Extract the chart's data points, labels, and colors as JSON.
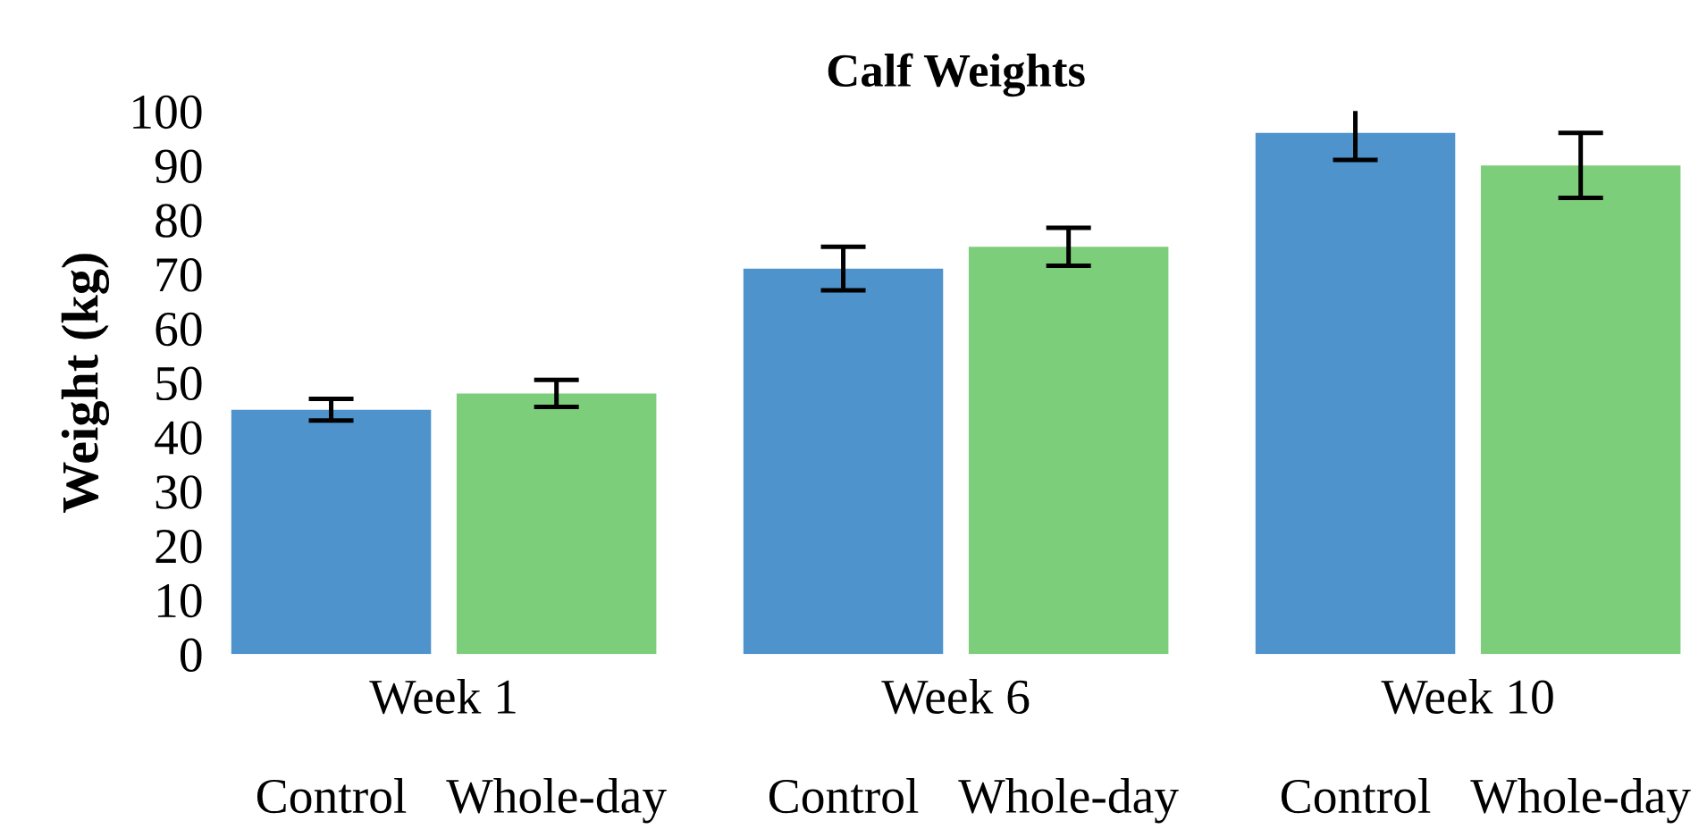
{
  "chart_data": {
    "type": "bar",
    "title": "Calf Weights",
    "ylabel": "Weight (kg)",
    "categories": [
      "Week 1",
      "Week 6",
      "Week 10"
    ],
    "series": [
      {
        "name": "Control",
        "color": "#4f93cd",
        "values": [
          45,
          71,
          96
        ],
        "errors": [
          2,
          4,
          5
        ]
      },
      {
        "name": "Whole-day",
        "color": "#7dce7a",
        "values": [
          48,
          75,
          90
        ],
        "errors": [
          2.5,
          3.5,
          6
        ]
      }
    ],
    "ylim": [
      0,
      100
    ],
    "yticks": [
      0,
      10,
      20,
      30,
      40,
      50,
      60,
      70,
      80,
      90,
      100
    ],
    "grid": false,
    "legend": false
  }
}
